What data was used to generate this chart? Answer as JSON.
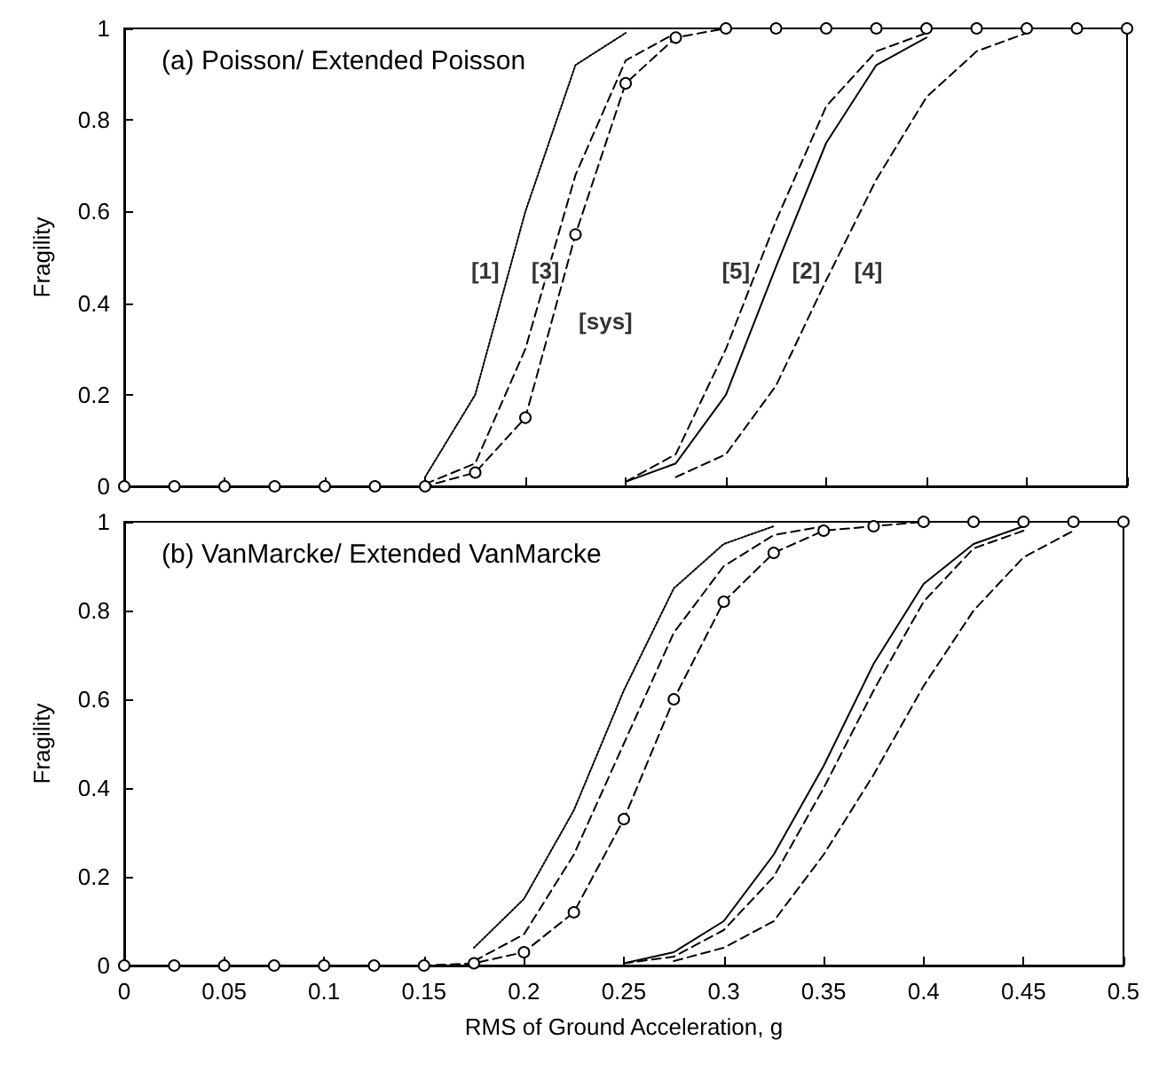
{
  "chart_data": [
    {
      "type": "line",
      "title": "(a) Poisson/ Extended Poisson",
      "ylabel": "Fragility",
      "tick_labels": "y",
      "x": [
        0,
        0.025,
        0.05,
        0.075,
        0.1,
        0.125,
        0.15,
        0.175,
        0.2,
        0.225,
        0.25,
        0.275,
        0.3,
        0.325,
        0.35,
        0.375,
        0.4,
        0.425,
        0.45,
        0.475,
        0.5
      ],
      "xlim": [
        0,
        0.5
      ],
      "xticks": [
        0,
        0.05,
        0.1,
        0.15,
        0.2,
        0.25,
        0.3,
        0.35,
        0.4,
        0.45,
        0.5
      ],
      "ylim": [
        0,
        1
      ],
      "yticks": [
        0,
        0.2,
        0.4,
        0.6,
        0.8,
        1
      ],
      "grid": false,
      "series": [
        {
          "color": "#000000",
          "line_style": "dotted",
          "marker": "none",
          "x": [
            0.15,
            0.175,
            0.2,
            0.225,
            0.25
          ],
          "values": [
            0.02,
            0.2,
            0.6,
            0.92,
            0.99
          ]
        },
        {
          "color": "#000000",
          "line_style": "dashed",
          "marker": "none",
          "x": [
            0.15,
            0.175,
            0.2,
            0.225,
            0.25,
            0.275
          ],
          "values": [
            0.005,
            0.05,
            0.3,
            0.68,
            0.93,
            0.99
          ]
        },
        {
          "color": "#000000",
          "line_style": "dashed",
          "marker": "circle",
          "values": [
            0,
            0,
            0,
            0,
            0,
            0,
            0,
            0.03,
            0.15,
            0.55,
            0.88,
            0.98,
            1,
            1,
            1,
            1,
            1,
            1,
            1,
            1,
            1
          ]
        },
        {
          "color": "#000000",
          "line_style": "dashed",
          "marker": "none",
          "x": [
            0.25,
            0.275,
            0.3,
            0.325,
            0.35,
            0.375,
            0.4
          ],
          "values": [
            0.01,
            0.07,
            0.3,
            0.58,
            0.83,
            0.95,
            0.99
          ]
        },
        {
          "color": "#000000",
          "line_style": "solid",
          "marker": "none",
          "x": [
            0.25,
            0.275,
            0.3,
            0.325,
            0.35,
            0.375,
            0.4
          ],
          "values": [
            0.01,
            0.05,
            0.2,
            0.48,
            0.75,
            0.92,
            0.98
          ]
        },
        {
          "color": "#000000",
          "line_style": "dashed",
          "marker": "none",
          "x": [
            0.275,
            0.3,
            0.325,
            0.35,
            0.375,
            0.4,
            0.425,
            0.45
          ],
          "values": [
            0.02,
            0.07,
            0.22,
            0.45,
            0.67,
            0.85,
            0.95,
            0.99
          ]
        }
      ],
      "annotations": [
        {
          "text": "[1]",
          "x": 0.18,
          "y": 0.47
        },
        {
          "text": "[3]",
          "x": 0.21,
          "y": 0.47
        },
        {
          "text": "[sys]",
          "x": 0.24,
          "y": 0.36
        },
        {
          "text": "[5]",
          "x": 0.305,
          "y": 0.47
        },
        {
          "text": "[2]",
          "x": 0.34,
          "y": 0.47
        },
        {
          "text": "[4]",
          "x": 0.371,
          "y": 0.47
        }
      ]
    },
    {
      "type": "line",
      "title": "(b) VanMarcke/ Extended VanMarcke",
      "ylabel": "Fragility",
      "xlabel": "RMS of Ground Acceleration, g",
      "x": [
        0,
        0.025,
        0.05,
        0.075,
        0.1,
        0.125,
        0.15,
        0.175,
        0.2,
        0.225,
        0.25,
        0.275,
        0.3,
        0.325,
        0.35,
        0.375,
        0.4,
        0.425,
        0.45,
        0.475,
        0.5
      ],
      "xlim": [
        0,
        0.5
      ],
      "xticks": [
        0,
        0.05,
        0.1,
        0.15,
        0.2,
        0.25,
        0.3,
        0.35,
        0.4,
        0.45,
        0.5
      ],
      "ylim": [
        0,
        1
      ],
      "yticks": [
        0,
        0.2,
        0.4,
        0.6,
        0.8,
        1
      ],
      "grid": false,
      "series": [
        {
          "color": "#000000",
          "line_style": "dotted",
          "marker": "none",
          "x": [
            0.175,
            0.2,
            0.225,
            0.25,
            0.275,
            0.3,
            0.325
          ],
          "values": [
            0.04,
            0.15,
            0.35,
            0.62,
            0.85,
            0.95,
            0.99
          ]
        },
        {
          "color": "#000000",
          "line_style": "dashed",
          "marker": "none",
          "x": [
            0.175,
            0.2,
            0.225,
            0.25,
            0.275,
            0.3,
            0.325,
            0.35
          ],
          "values": [
            0.01,
            0.07,
            0.25,
            0.5,
            0.75,
            0.9,
            0.97,
            0.99
          ]
        },
        {
          "color": "#000000",
          "line_style": "dashed",
          "marker": "circle",
          "values": [
            0,
            0,
            0,
            0,
            0,
            0,
            0,
            0.005,
            0.03,
            0.12,
            0.33,
            0.6,
            0.82,
            0.93,
            0.98,
            0.99,
            1,
            1,
            1,
            1,
            1
          ]
        },
        {
          "color": "#000000",
          "line_style": "solid",
          "marker": "none",
          "x": [
            0.25,
            0.275,
            0.3,
            0.325,
            0.35,
            0.375,
            0.4,
            0.425,
            0.45
          ],
          "values": [
            0.005,
            0.03,
            0.1,
            0.25,
            0.45,
            0.68,
            0.86,
            0.95,
            0.99
          ]
        },
        {
          "color": "#000000",
          "line_style": "dashed",
          "marker": "none",
          "x": [
            0.25,
            0.275,
            0.3,
            0.325,
            0.35,
            0.375,
            0.4,
            0.425,
            0.45
          ],
          "values": [
            0.005,
            0.02,
            0.08,
            0.2,
            0.4,
            0.62,
            0.82,
            0.94,
            0.98
          ]
        },
        {
          "color": "#000000",
          "line_style": "dashed",
          "marker": "none",
          "x": [
            0.275,
            0.3,
            0.325,
            0.35,
            0.375,
            0.4,
            0.425,
            0.45,
            0.475
          ],
          "values": [
            0.01,
            0.04,
            0.1,
            0.25,
            0.43,
            0.63,
            0.8,
            0.92,
            0.98
          ]
        }
      ]
    }
  ]
}
